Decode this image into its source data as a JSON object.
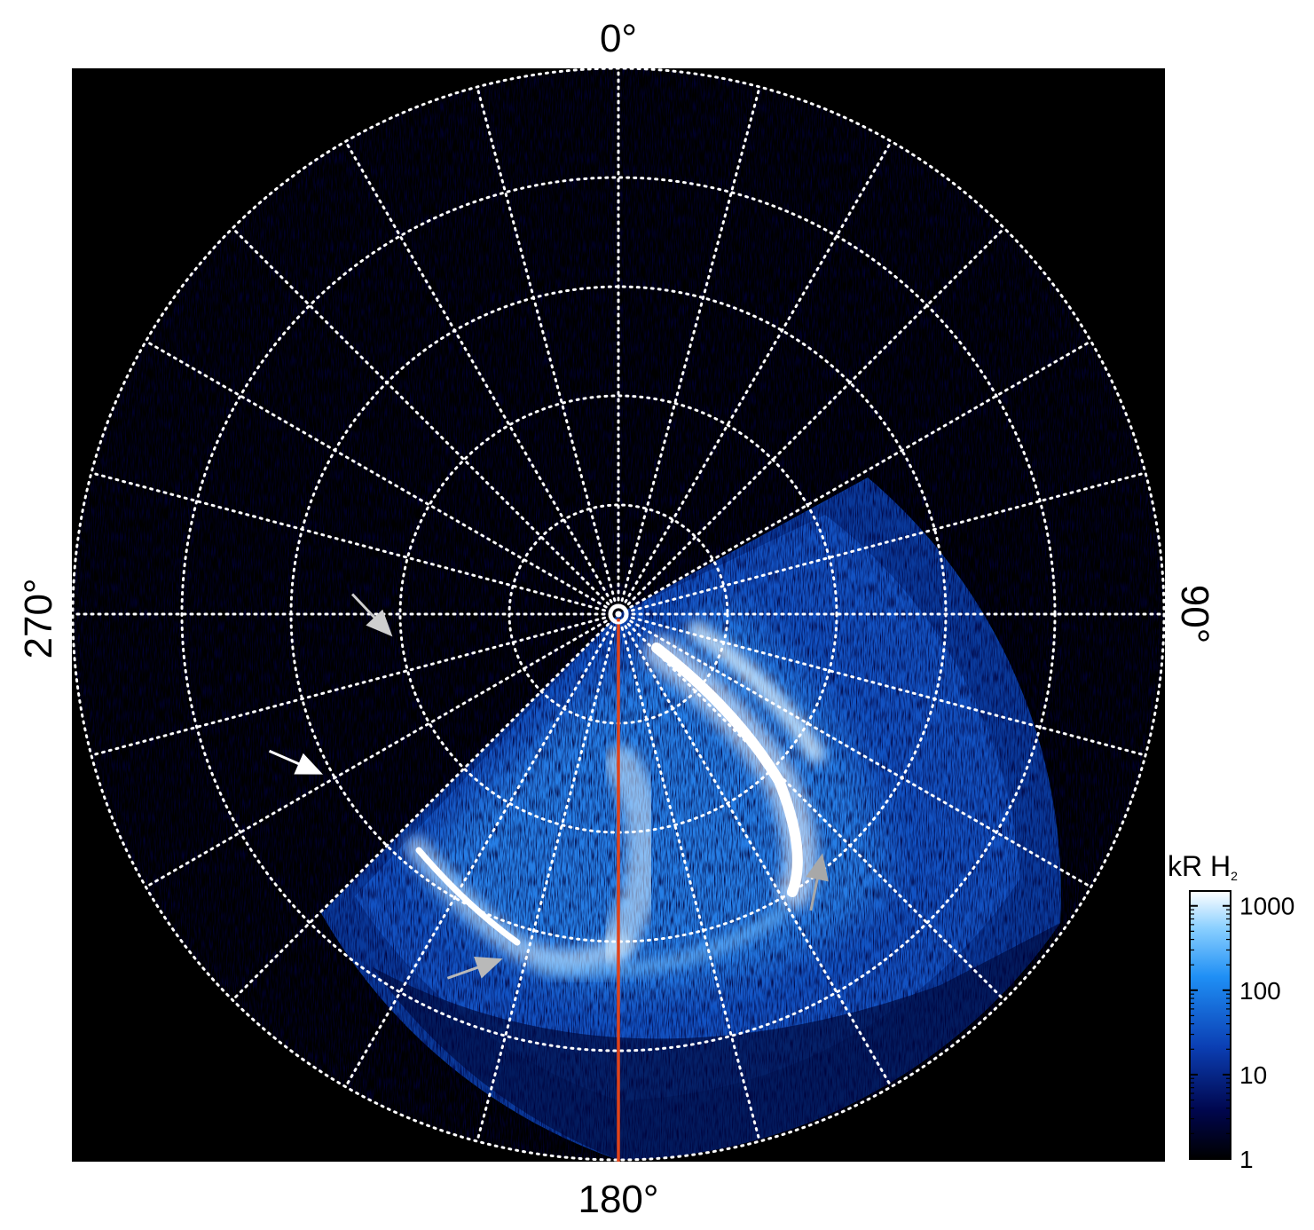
{
  "chart_data": {
    "type": "heatmap",
    "projection": "polar",
    "background_color": "#000000",
    "grid": true,
    "grid_style": "dotted",
    "grid_color": "#ffffff",
    "longitude_labels": {
      "top": "0°",
      "right": "90°",
      "bottom": "180°",
      "left": "270°"
    },
    "meridian_step_deg": 15,
    "parallel_rings": 5,
    "reference_line": {
      "longitude_deg": 180,
      "color": "#e0431a"
    },
    "colorbar": {
      "title": "kR H",
      "title_subscript": "2",
      "scale": "log",
      "range": [
        1,
        1500
      ],
      "ticks": [
        {
          "label": "1000",
          "value": 1000
        },
        {
          "label": "100",
          "value": 100
        },
        {
          "label": "10",
          "value": 10
        },
        {
          "label": "1",
          "value": 1
        }
      ],
      "colormap": [
        "#000000",
        "#00064d",
        "#0b3fb4",
        "#1f8ff5",
        "#89cfff",
        "#ffffff"
      ]
    },
    "annotations": [
      {
        "type": "arrow",
        "color": "#cfcfcf",
        "lon_deg": 265,
        "r_frac": 0.42
      },
      {
        "type": "arrow",
        "color": "#ffffff",
        "lon_deg": 242,
        "r_frac": 0.62
      },
      {
        "type": "arrow",
        "color": "#b9b9b9",
        "lon_deg": 199,
        "r_frac": 0.67
      },
      {
        "type": "arrow",
        "color": "#a8a8a8",
        "lon_deg": 140,
        "r_frac": 0.58
      }
    ]
  }
}
